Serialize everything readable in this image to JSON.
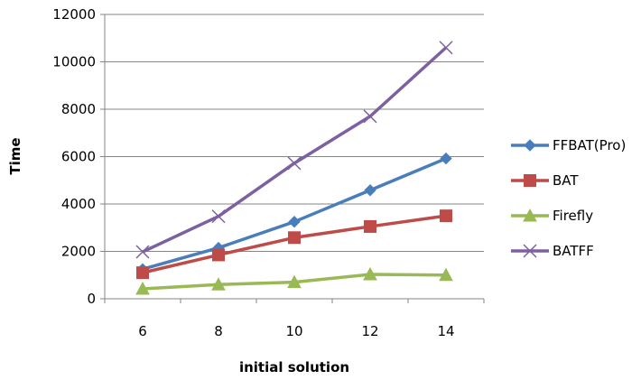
{
  "chart_data": {
    "type": "line",
    "title": "",
    "xlabel": "initial solution",
    "ylabel": "Time",
    "categories": [
      "6",
      "8",
      "10",
      "12",
      "14"
    ],
    "ylim": [
      0,
      12000
    ],
    "yticks": [
      "0",
      "2000",
      "4000",
      "6000",
      "8000",
      "10000",
      "12000"
    ],
    "grid": "horizontal",
    "legend_position": "right",
    "series": [
      {
        "name": "FFBAT(Pro)",
        "values": [
          1250,
          2150,
          3250,
          4580,
          5920
        ],
        "color": "#4a7ebb",
        "marker": "diamond"
      },
      {
        "name": "BAT",
        "values": [
          1100,
          1850,
          2580,
          3050,
          3500
        ],
        "color": "#be4b48",
        "marker": "square"
      },
      {
        "name": "Firefly",
        "values": [
          420,
          600,
          700,
          1030,
          1000
        ],
        "color": "#98b954",
        "marker": "triangle"
      },
      {
        "name": "BATFF",
        "values": [
          1980,
          3480,
          5720,
          7700,
          10600
        ],
        "color": "#7d60a0",
        "marker": "x"
      }
    ]
  }
}
